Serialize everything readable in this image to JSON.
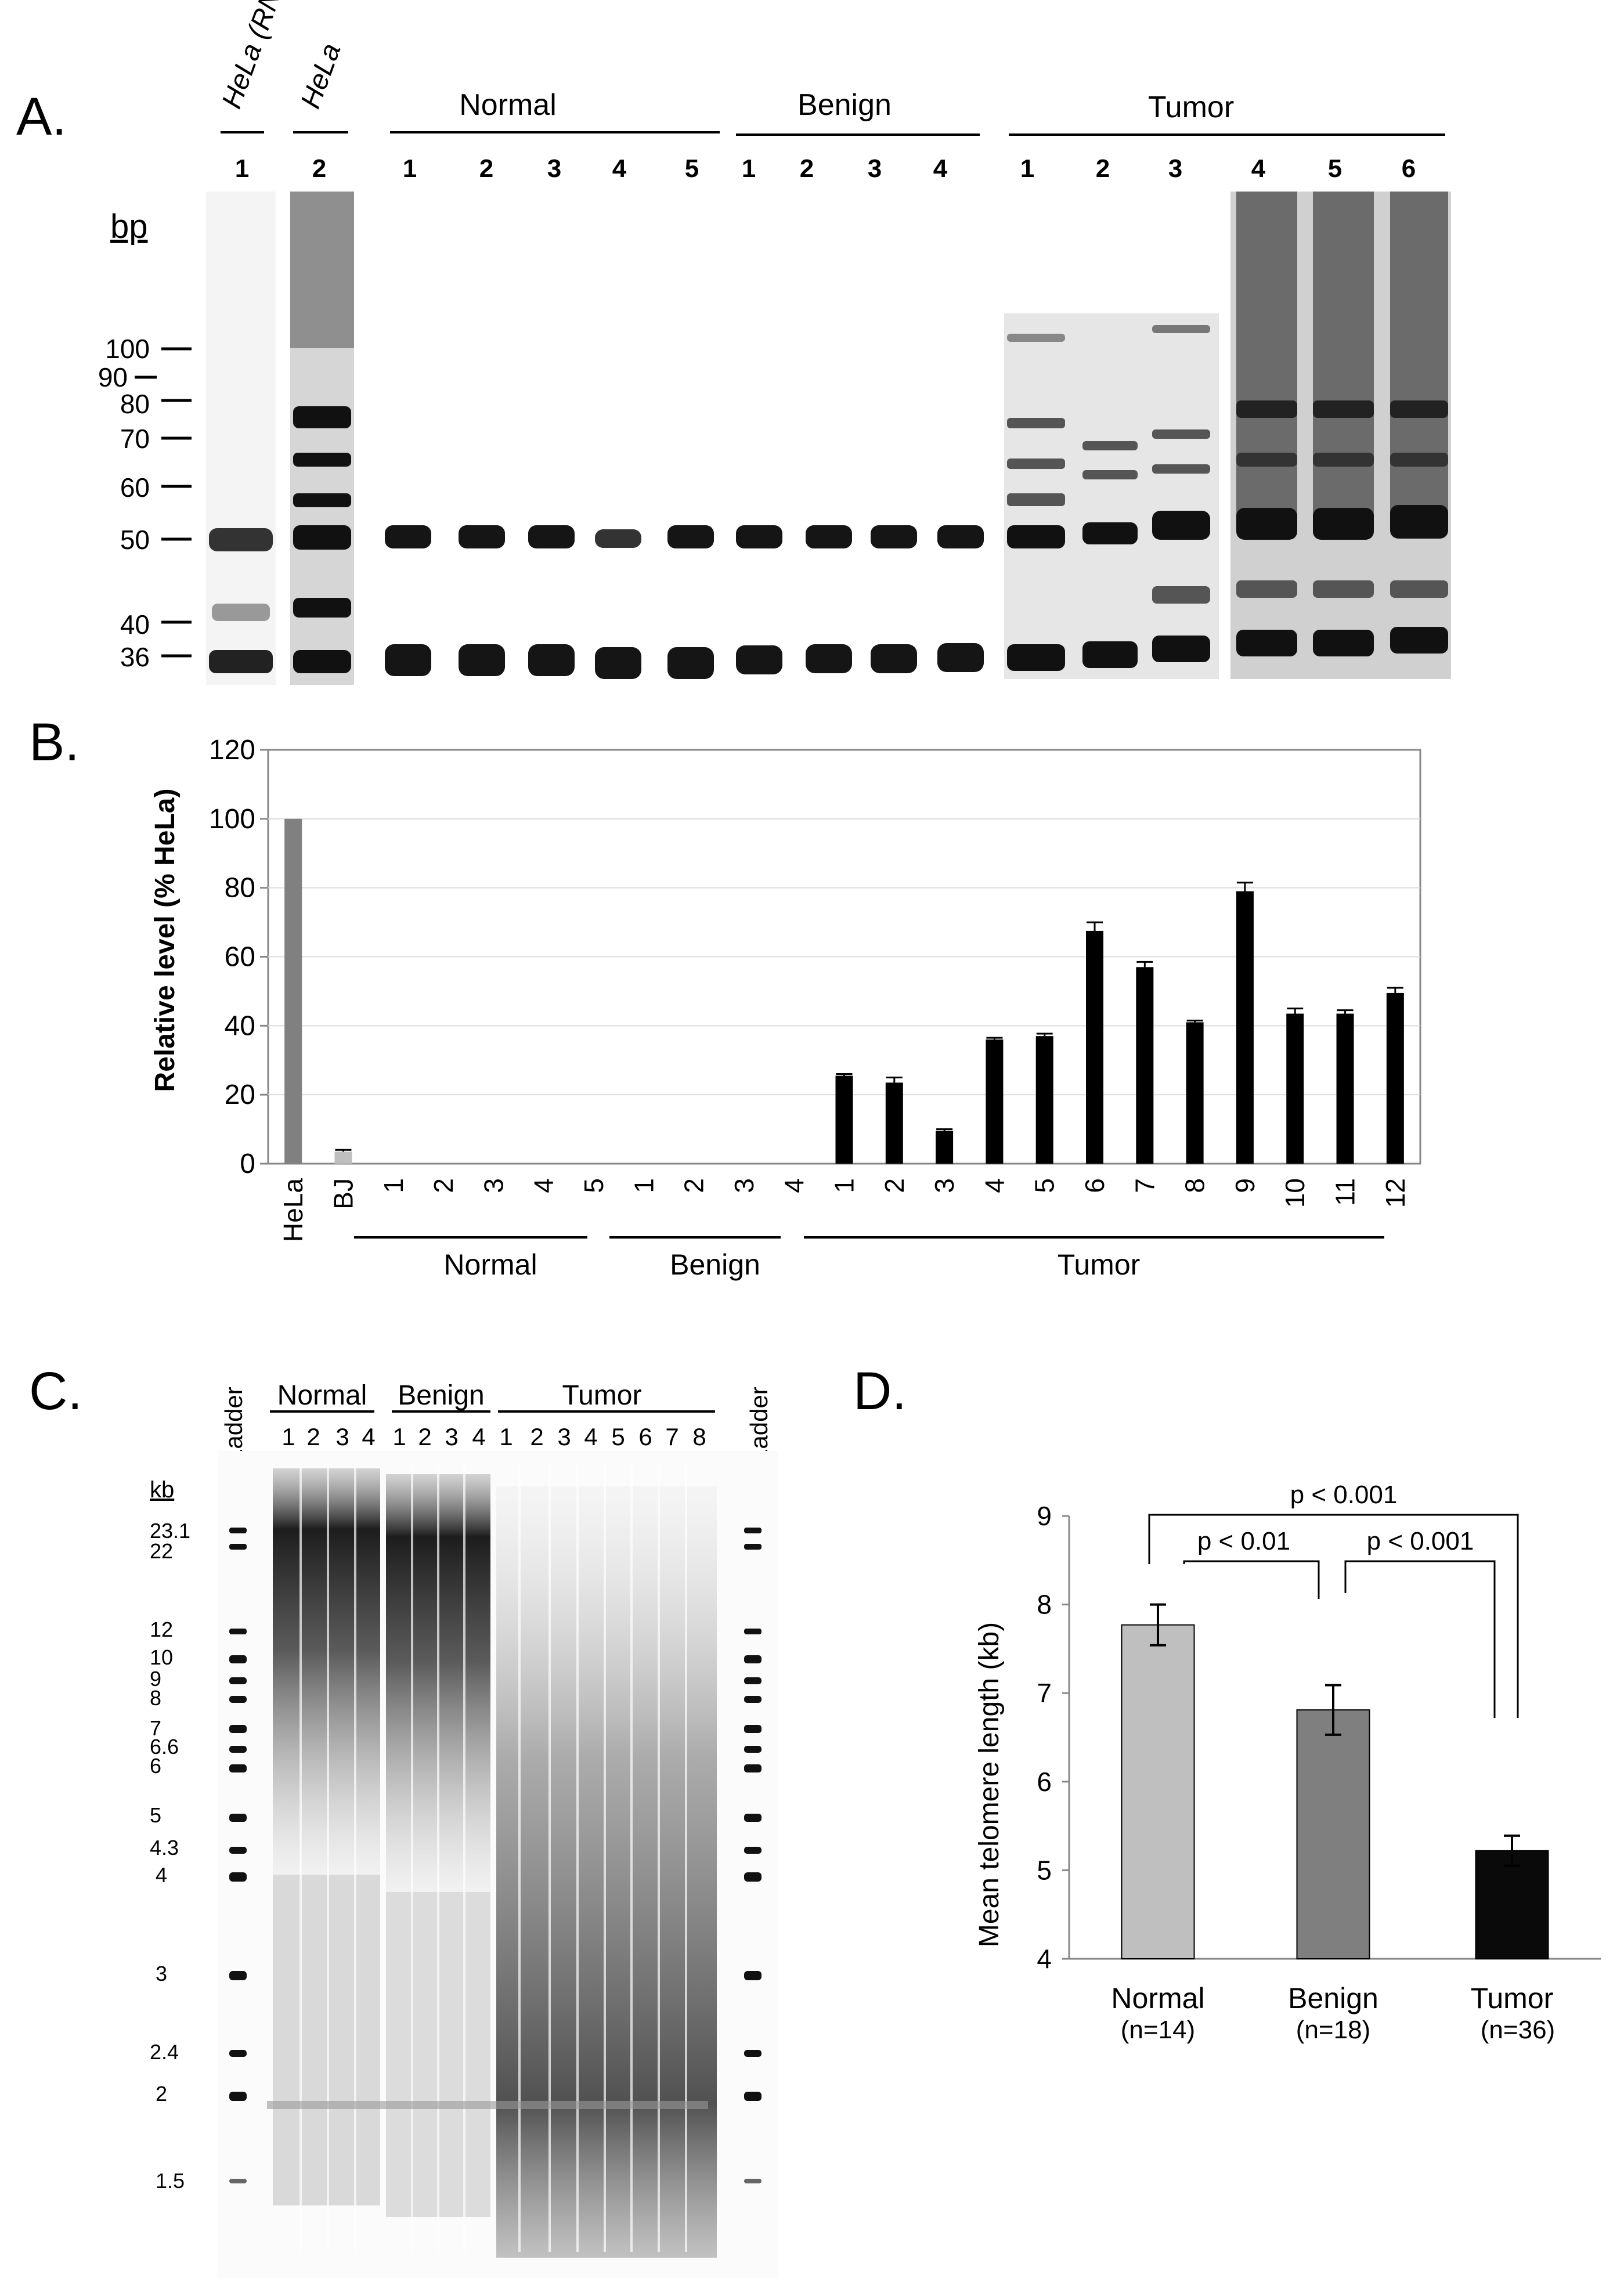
{
  "panelA": {
    "letter": "A.",
    "bp_label": "bp",
    "top_lane_labels": [
      "HeLa (RNase)",
      "HeLa"
    ],
    "group_headers": [
      "Normal",
      "Benign",
      "Tumor"
    ],
    "lane_numbers": [
      "1",
      "2",
      "1",
      "2",
      "3",
      "4",
      "5",
      "1",
      "2",
      "3",
      "4",
      "1",
      "2",
      "3",
      "4",
      "5",
      "6"
    ],
    "markers": [
      "100",
      "90",
      "80",
      "70",
      "60",
      "50",
      "40",
      "36"
    ]
  },
  "panelB": {
    "letter": "B.",
    "chart_data": {
      "type": "bar",
      "ylabel": "Relative level (% HeLa)",
      "ylim": [
        0,
        120
      ],
      "yticks": [
        "0",
        "20",
        "40",
        "60",
        "80",
        "100",
        "120"
      ],
      "categories": [
        "HeLa",
        "BJ",
        "1",
        "2",
        "3",
        "4",
        "5",
        "1",
        "2",
        "3",
        "4",
        "1",
        "2",
        "3",
        "4",
        "5",
        "6",
        "7",
        "8",
        "9",
        "10",
        "11",
        "12"
      ],
      "values": [
        100,
        3.5,
        0,
        0,
        0,
        0,
        0,
        0,
        0,
        0,
        0,
        25.5,
        23.5,
        9.5,
        36,
        37,
        67.5,
        57,
        41,
        79,
        43.5,
        43.5,
        49.5
      ],
      "errors": [
        0,
        0.5,
        0,
        0,
        0,
        0,
        0,
        0,
        0,
        0,
        0,
        0.5,
        1.5,
        0.5,
        0.5,
        0.7,
        2.5,
        1.5,
        0.5,
        2.5,
        1.5,
        1,
        1.5
      ],
      "groups": [
        "Normal",
        "Benign",
        "Tumor"
      ]
    }
  },
  "panelC": {
    "letter": "C.",
    "ladder_label": "Ladder",
    "kb_label": "kb",
    "group_headers": [
      "Normal",
      "Benign",
      "Tumor"
    ],
    "lane_numbers": [
      "1",
      "2",
      "3",
      "4",
      "1",
      "2",
      "3",
      "4",
      "1",
      "2",
      "3",
      "4",
      "5",
      "6",
      "7",
      "8"
    ],
    "size_labels": [
      "23.1",
      "22",
      "12",
      "10",
      "9",
      "8",
      "7",
      "6.6",
      "6",
      "5",
      "4.3",
      "4",
      "3",
      "2.4",
      "2",
      "1.5"
    ]
  },
  "panelD": {
    "letter": "D.",
    "chart_data": {
      "type": "bar",
      "ylabel": "Mean  telomere length (kb)",
      "ylim": [
        4,
        9
      ],
      "yticks": [
        "4",
        "5",
        "6",
        "7",
        "8",
        "9"
      ],
      "categories": [
        "Normal",
        "Benign",
        "Tumor"
      ],
      "n_labels": [
        "(n=14)",
        "(n=18)",
        "(n=36)"
      ],
      "values": [
        7.77,
        6.81,
        5.22
      ],
      "errors": [
        0.23,
        0.28,
        0.17
      ],
      "colors": [
        "#bfbfbf",
        "#7f7f7f",
        "#0a0a0a"
      ],
      "significance": [
        "p < 0.001",
        "p < 0.01",
        "p < 0.001"
      ]
    }
  }
}
